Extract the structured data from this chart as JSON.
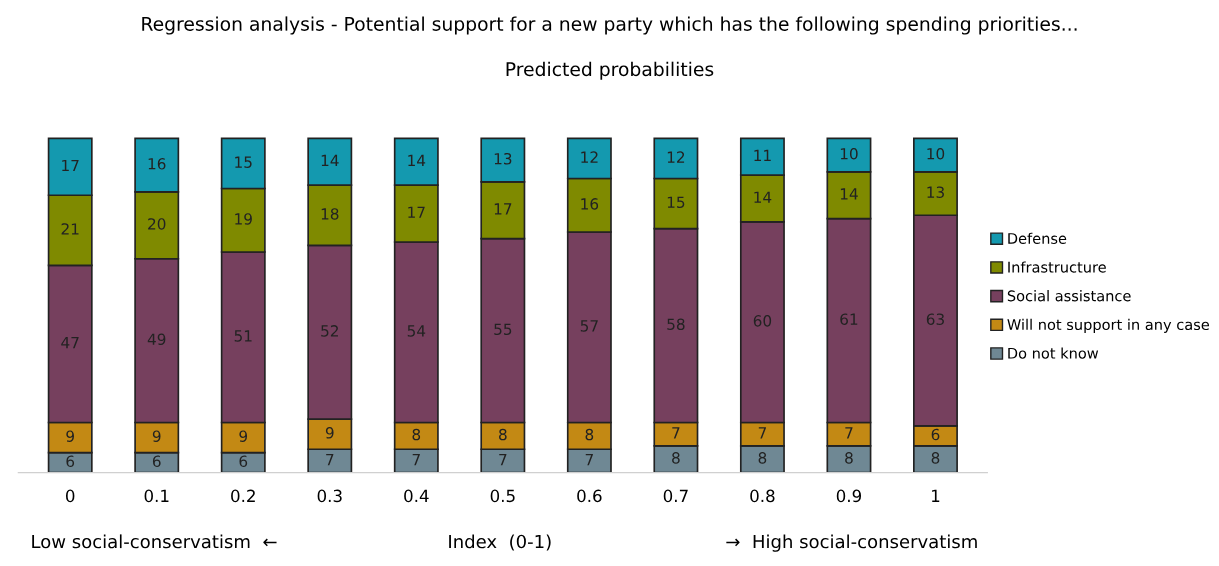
{
  "chart_data": {
    "type": "bar",
    "stacked": true,
    "title": "Regression analysis - Potential support for a new party which has the following spending priorities...",
    "subtitle": "Predicted probabilities",
    "xlabel": "Index  (0-1)",
    "categories": [
      "0",
      "0.1",
      "0.2",
      "0.3",
      "0.4",
      "0.5",
      "0.6",
      "0.7",
      "0.8",
      "0.9",
      "1"
    ],
    "series": [
      {
        "name": "Do not know",
        "color": "#6f8894",
        "values": [
          6,
          6,
          6,
          7,
          7,
          7,
          7,
          8,
          8,
          8,
          8
        ]
      },
      {
        "name": "Will not support in any case",
        "color": "#c38914",
        "values": [
          9,
          9,
          9,
          9,
          8,
          8,
          8,
          7,
          7,
          7,
          6
        ]
      },
      {
        "name": "Social assistance",
        "color": "#76405e",
        "values": [
          47,
          49,
          51,
          52,
          54,
          55,
          57,
          58,
          60,
          61,
          63
        ]
      },
      {
        "name": "Infrastructure",
        "color": "#7f8a00",
        "values": [
          21,
          20,
          19,
          18,
          17,
          17,
          16,
          15,
          14,
          14,
          13
        ]
      },
      {
        "name": "Defense",
        "color": "#1499af",
        "values": [
          17,
          16,
          15,
          14,
          14,
          13,
          12,
          12,
          11,
          10,
          10
        ]
      }
    ],
    "data_labels": true,
    "legend": "right",
    "grid": false,
    "tick_labels": "x",
    "annotations": [
      "Low social-conservatism  ←",
      "→  High social-conservatism"
    ]
  }
}
